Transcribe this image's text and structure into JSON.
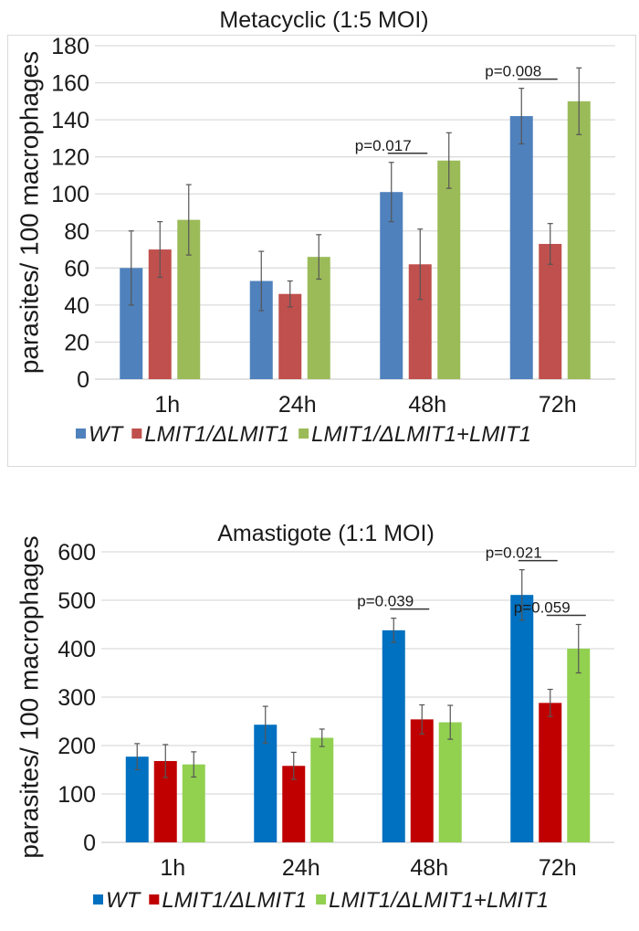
{
  "chart_data": [
    {
      "type": "bar",
      "title": "Metacyclic (1:5 MOI)",
      "xlabel": "",
      "ylabel": "parasites/ 100 macrophages",
      "categories": [
        "1h",
        "24h",
        "48h",
        "72h"
      ],
      "ylim": [
        0,
        180
      ],
      "yticks": [
        0,
        20,
        40,
        60,
        80,
        100,
        120,
        140,
        160,
        180
      ],
      "grid": true,
      "legend_position": "bottom",
      "series": [
        {
          "name": "WT",
          "color": "#4F81BD",
          "values": [
            60,
            53,
            101,
            142
          ],
          "errors": [
            20,
            16,
            16,
            15
          ]
        },
        {
          "name": "LMIT1/ΔLMIT1",
          "color": "#C0504D",
          "values": [
            70,
            46,
            62,
            73
          ],
          "errors": [
            15,
            7,
            19,
            11
          ]
        },
        {
          "name": "LMIT1/ΔLMIT1+LMIT1",
          "color": "#9BBB59",
          "values": [
            86,
            66,
            118,
            150
          ],
          "errors": [
            19,
            12,
            15,
            18
          ]
        }
      ],
      "annotations": [
        {
          "text": "p=0.017",
          "category": "48h",
          "between": [
            "WT",
            "LMIT1/ΔLMIT1"
          ]
        },
        {
          "text": "p=0.008",
          "category": "72h",
          "between": [
            "WT",
            "LMIT1/ΔLMIT1"
          ]
        }
      ]
    },
    {
      "type": "bar",
      "title": "Amastigote (1:1 MOI)",
      "xlabel": "",
      "ylabel": "parasites/ 100 macrophages",
      "categories": [
        "1h",
        "24h",
        "48h",
        "72h"
      ],
      "ylim": [
        0,
        600
      ],
      "yticks": [
        0,
        100,
        200,
        300,
        400,
        500,
        600
      ],
      "grid": true,
      "legend_position": "bottom",
      "series": [
        {
          "name": "WT",
          "color": "#0070C0",
          "values": [
            177,
            243,
            438,
            511
          ],
          "errors": [
            27,
            38,
            25,
            52
          ]
        },
        {
          "name": "LMIT1/ΔLMIT1",
          "color": "#C00000",
          "values": [
            168,
            158,
            254,
            288
          ],
          "errors": [
            34,
            28,
            30,
            28
          ]
        },
        {
          "name": "LMIT1/ΔLMIT1+LMIT1",
          "color": "#92D050",
          "values": [
            161,
            216,
            248,
            400
          ],
          "errors": [
            26,
            18,
            35,
            50
          ]
        }
      ],
      "annotations": [
        {
          "text": "p=0.039",
          "category": "48h",
          "between": [
            "WT",
            "LMIT1/ΔLMIT1"
          ]
        },
        {
          "text": "p=0.021",
          "category": "72h",
          "between": [
            "WT",
            "LMIT1/ΔLMIT1"
          ]
        },
        {
          "text": "p=0.059",
          "category": "72h",
          "between": [
            "LMIT1/ΔLMIT1",
            "LMIT1/ΔLMIT1+LMIT1"
          ]
        }
      ]
    }
  ]
}
